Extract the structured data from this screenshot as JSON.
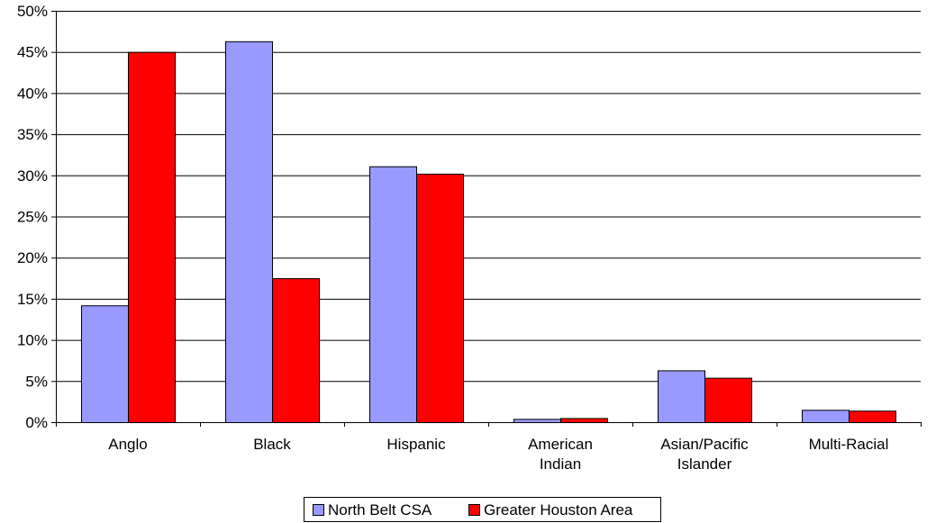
{
  "chart_data": {
    "type": "bar",
    "title": "",
    "xlabel": "",
    "ylabel": "",
    "ylim": [
      0,
      50
    ],
    "y_ticks": [
      "0%",
      "5%",
      "10%",
      "15%",
      "20%",
      "25%",
      "30%",
      "35%",
      "40%",
      "45%",
      "50%"
    ],
    "grid": "horizontal",
    "legend_position": "bottom",
    "categories": [
      [
        "Anglo"
      ],
      [
        "Black"
      ],
      [
        "Hispanic"
      ],
      [
        "American",
        "Indian"
      ],
      [
        "Asian/Pacific",
        "Islander"
      ],
      [
        "Multi-Racial"
      ]
    ],
    "series": [
      {
        "name": "North Belt CSA",
        "color": "#9999ff",
        "values": [
          14.2,
          46.3,
          31.1,
          0.4,
          6.3,
          1.5
        ]
      },
      {
        "name": "Greater Houston Area",
        "color": "#ff0000",
        "values": [
          45.0,
          17.5,
          30.2,
          0.5,
          5.4,
          1.4
        ]
      }
    ]
  }
}
